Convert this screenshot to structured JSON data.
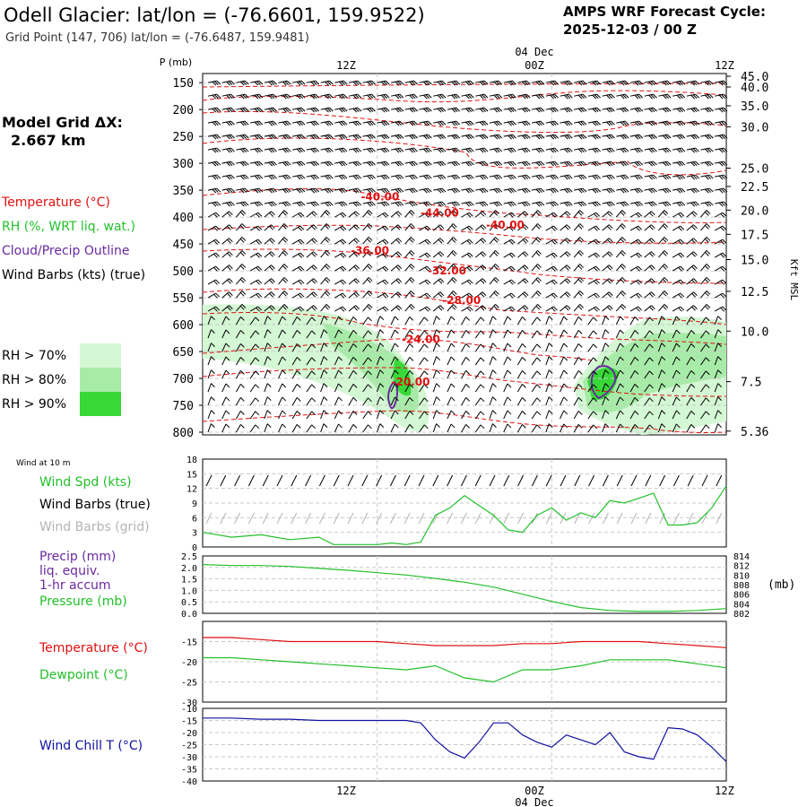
{
  "header": {
    "title": "Odell Glacier:  lat/lon = (-76.6601, 159.9522)",
    "grid_point": "Grid Point (147, 706) lat/lon = (-76.6487, 159.9481)",
    "cycle_line1": "AMPS WRF Forecast Cycle:",
    "cycle_line2": "2025-12-03 / 00  Z",
    "model_grid_line1": "Model Grid ΔX:",
    "model_grid_line2": "2.667 km"
  },
  "colors": {
    "temperature": "#e01010",
    "rh": "#22c02a",
    "cloud": "#6a2aa0",
    "wind": "#000000",
    "wind_grid": "#b4b4b4",
    "windchill": "#1010a0",
    "dewpoint": "#22c02a",
    "rh70": "#d4f7d4",
    "rh80": "#a8eba8",
    "rh90": "#38d838"
  },
  "legend": {
    "temperature": "Temperature (°C)",
    "rh": "RH (%, WRT liq. wat.)",
    "cloud": "Cloud/Precip Outline",
    "wind": "Wind Barbs (kts) (true)",
    "rh_boxes": [
      "RH > 70%",
      "RH > 80%",
      "RH > 90%"
    ]
  },
  "time_axis": {
    "top_labels": [
      "12Z",
      "00Z",
      "12Z"
    ],
    "date_label": "04 Dec",
    "bottom_labels": [
      "12Z",
      "00Z",
      "12Z"
    ]
  },
  "chart_data": [
    {
      "type": "line",
      "name": "cross-section",
      "ylabel": "P (mb)",
      "ylabel_right": "Kft MSL",
      "pressure_ticks": [
        150,
        200,
        250,
        300,
        350,
        400,
        450,
        500,
        550,
        600,
        650,
        700,
        750,
        800
      ],
      "height_ticks": [
        "45.0",
        "40.0",
        "35.0",
        "30.0",
        "25.0",
        "22.5",
        "20.0",
        "17.5",
        "15.0",
        "12.5",
        "10.0",
        "7.5",
        "5.36"
      ],
      "height_tick_pressures": [
        138,
        158,
        193,
        232,
        309,
        343,
        387,
        432,
        479,
        538,
        612,
        706,
        798
      ],
      "temperature_labels": [
        {
          "text": "-40.00",
          "hour": 12.2,
          "p": 362
        },
        {
          "text": "-44.00",
          "hour": 16.3,
          "p": 392
        },
        {
          "text": "-40.00",
          "hour": 20.8,
          "p": 415
        },
        {
          "text": "-36.00",
          "hour": 11.5,
          "p": 462
        },
        {
          "text": "-32.00",
          "hour": 16.8,
          "p": 500
        },
        {
          "text": "-28.00",
          "hour": 17.8,
          "p": 555
        },
        {
          "text": "-24.00",
          "hour": 15.0,
          "p": 627
        },
        {
          "text": "-20.00",
          "hour": 14.3,
          "p": 707
        }
      ]
    },
    {
      "type": "line",
      "name": "wind10m",
      "label_top": "Wind at 10 m",
      "legend": [
        "Wind Spd (kts)",
        "Wind Barbs (true)",
        "Wind Barbs (grid)"
      ],
      "y_ticks": [
        0,
        3,
        6,
        9,
        12,
        15,
        18
      ],
      "ylim": [
        0,
        18
      ],
      "hours": [
        0,
        2,
        4,
        6,
        8,
        9,
        10,
        11,
        12,
        13,
        14,
        15,
        16,
        17,
        18,
        19,
        20,
        21,
        22,
        23,
        24,
        25,
        26,
        27,
        28,
        29,
        30,
        31,
        32,
        33,
        34,
        35,
        36
      ],
      "values": [
        3,
        2,
        2.5,
        1.5,
        2,
        0.5,
        0.5,
        0.5,
        0.5,
        0.8,
        0.5,
        1,
        6.5,
        8,
        10.5,
        8.5,
        6.5,
        3.5,
        3,
        6.5,
        8,
        5.5,
        7,
        6,
        9.5,
        9,
        10,
        11,
        4.5,
        4.5,
        5,
        8,
        12.5
      ]
    },
    {
      "type": "line",
      "name": "precip-pressure",
      "legend": [
        "Precip (mm)",
        "liq. equiv.",
        "1-hr accum",
        "Pressure (mb)"
      ],
      "y_ticks": [
        "0.0",
        "0.5",
        "1.0",
        "1.5",
        "2.0",
        "2.5"
      ],
      "y_ticks_right": [
        802,
        804,
        806,
        808,
        810,
        812,
        814
      ],
      "right_unit": "(mb)",
      "hours": [
        0,
        2,
        4,
        6,
        8,
        10,
        12,
        14,
        16,
        18,
        20,
        22,
        24,
        26,
        28,
        30,
        32,
        34,
        36
      ],
      "pressure": [
        812.2,
        812.0,
        812.0,
        811.8,
        811.4,
        811.0,
        810.5,
        810.0,
        809.3,
        808.5,
        807.5,
        806.0,
        804.5,
        803.2,
        802.6,
        802.4,
        802.4,
        802.6,
        803.0
      ]
    },
    {
      "type": "line",
      "name": "temp-dewpoint",
      "legend": [
        "Temperature (°C)",
        "Dewpoint (°C)"
      ],
      "y_ticks": [
        -15,
        -20,
        -25,
        -30
      ],
      "ylim": [
        -30,
        -10
      ],
      "hours": [
        0,
        2,
        4,
        6,
        8,
        10,
        12,
        14,
        16,
        18,
        20,
        22,
        24,
        26,
        28,
        30,
        32,
        34,
        36
      ],
      "temperature": [
        -14,
        -14,
        -14.5,
        -15,
        -15,
        -15,
        -15,
        -15.5,
        -16,
        -16,
        -16,
        -15.5,
        -15.5,
        -15,
        -15,
        -15,
        -15.5,
        -16,
        -16.5
      ],
      "dewpoint": [
        -19,
        -19,
        -19.5,
        -20,
        -20.5,
        -21,
        -21.5,
        -22,
        -21,
        -24,
        -25,
        -22,
        -22,
        -21,
        -19.5,
        -19.5,
        -19.5,
        -20.5,
        -21.5
      ]
    },
    {
      "type": "line",
      "name": "windchill",
      "legend": [
        "Wind Chill T (°C)"
      ],
      "y_ticks": [
        -10,
        -15,
        -20,
        -25,
        -30,
        -35,
        -40
      ],
      "ylim": [
        -40,
        -10
      ],
      "hours": [
        0,
        2,
        4,
        6,
        8,
        10,
        12,
        14,
        15,
        16,
        17,
        18,
        19,
        20,
        21,
        22,
        23,
        24,
        25,
        26,
        27,
        28,
        29,
        30,
        31,
        32,
        33,
        34,
        35,
        36
      ],
      "values": [
        -14,
        -14,
        -14.5,
        -14.5,
        -15,
        -15,
        -15,
        -15,
        -16,
        -23,
        -28,
        -30.5,
        -24,
        -16,
        -16,
        -21,
        -24,
        -26,
        -21,
        -23,
        -25,
        -20,
        -28,
        -30,
        -31,
        -18,
        -18.5,
        -21,
        -26,
        -32
      ]
    }
  ]
}
